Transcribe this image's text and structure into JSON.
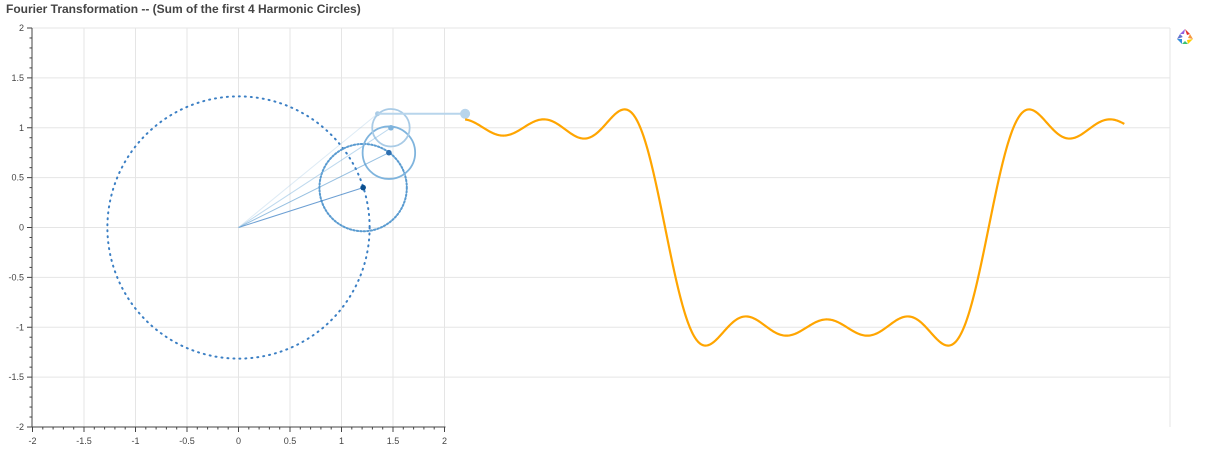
{
  "chart_data": {
    "type": "line",
    "title": "Fourier Transformation -- (Sum of the first 4 Harmonic Circles)",
    "xlabel": "",
    "ylabel": "",
    "xlim": [
      -2,
      2
    ],
    "ylim": [
      -2,
      2
    ],
    "x_ticks": [
      -2,
      -1.5,
      -1,
      -0.5,
      0,
      0.5,
      1,
      1.5,
      2
    ],
    "x_tick_labels": [
      "-2",
      "-1.5",
      "-1",
      "-0.5",
      "0",
      "0.5",
      "1",
      "1.5",
      "2"
    ],
    "y_ticks": [
      2,
      1.5,
      1,
      0.5,
      0,
      -0.5,
      -1,
      -1.5,
      -2
    ],
    "y_tick_labels": [
      "2",
      "1.5",
      "1",
      "0.5",
      "0",
      "-0.5",
      "-1",
      "-1.5",
      "-2"
    ],
    "grid": true,
    "harmonic_circles": [
      {
        "harmonic": 1,
        "center": [
          0,
          0
        ],
        "radius": 1.273,
        "end": [
          1.21,
          0.4
        ]
      },
      {
        "harmonic": 3,
        "center": [
          1.21,
          0.4
        ],
        "radius": 0.424,
        "end": [
          1.46,
          0.75
        ]
      },
      {
        "harmonic": 5,
        "center": [
          1.46,
          0.75
        ],
        "radius": 0.255,
        "end": [
          1.48,
          1.0
        ]
      },
      {
        "harmonic": 7,
        "center": [
          1.48,
          1.0
        ],
        "radius": 0.182,
        "end": [
          1.35,
          1.14
        ]
      }
    ],
    "tracer": {
      "from": [
        1.35,
        1.14
      ],
      "to": [
        2.2,
        1.14
      ]
    },
    "wave": {
      "series_name": "",
      "harmonics": [
        1,
        3,
        5,
        7
      ],
      "x_start": 2.2,
      "x_end": 8.6,
      "amplitude": 1.273,
      "phase_offset": 1.2
    },
    "colors": {
      "axis": "#444444",
      "grid": "#e5e5e5",
      "circle1": "#3b7fc4",
      "circle2": "#5a9bd0",
      "circle3": "#7fb4dd",
      "circle4": "#a9cbe6",
      "tracer": "#b8d5ec",
      "wave": "#ffa500"
    }
  },
  "toolbar": {
    "logo_icon": "bokeh-logo-icon"
  }
}
